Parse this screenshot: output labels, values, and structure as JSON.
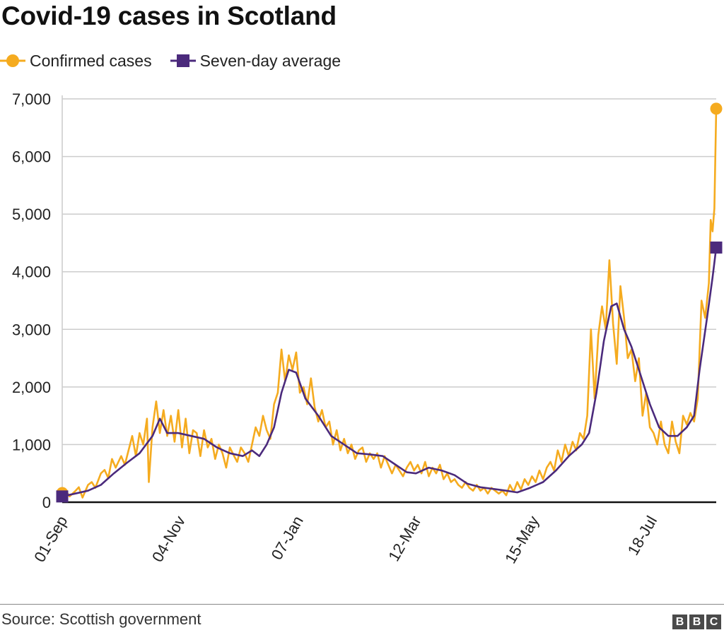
{
  "title": "Covid-19 cases in Scotland",
  "source": "Source: Scottish government",
  "logo": [
    "B",
    "B",
    "C"
  ],
  "colors": {
    "confirmed": "#f5ab1f",
    "average": "#4b2a7c",
    "grid": "#cccccc",
    "axis": "#111111"
  },
  "chart_data": {
    "type": "line",
    "title": "Covid-19 cases in Scotland",
    "xlabel": "",
    "ylabel": "",
    "ylim": [
      0,
      7000
    ],
    "yticks": [
      0,
      1000,
      2000,
      3000,
      4000,
      5000,
      6000,
      7000
    ],
    "ytick_labels": [
      "0",
      "1,000",
      "2,000",
      "3,000",
      "4,000",
      "5,000",
      "6,000",
      "7,000"
    ],
    "xticks": [
      {
        "label": "01-Sep",
        "date": "2020-09-01"
      },
      {
        "label": "04-Nov",
        "date": "2020-11-04"
      },
      {
        "label": "07-Jan",
        "date": "2021-01-07"
      },
      {
        "label": "12-Mar",
        "date": "2021-03-12"
      },
      {
        "label": "15-May",
        "date": "2021-05-15"
      },
      {
        "label": "18-Jul",
        "date": "2021-07-18"
      }
    ],
    "grid": true,
    "legend": "top-left",
    "series": [
      {
        "name": "Confirmed cases",
        "marker": "circle",
        "points": [
          [
            "2020-09-01",
            160
          ],
          [
            "2020-09-03",
            200
          ],
          [
            "2020-09-05",
            100
          ],
          [
            "2020-09-08",
            190
          ],
          [
            "2020-09-10",
            260
          ],
          [
            "2020-09-12",
            80
          ],
          [
            "2020-09-15",
            300
          ],
          [
            "2020-09-17",
            350
          ],
          [
            "2020-09-19",
            250
          ],
          [
            "2020-09-22",
            500
          ],
          [
            "2020-09-24",
            560
          ],
          [
            "2020-09-26",
            420
          ],
          [
            "2020-09-28",
            750
          ],
          [
            "2020-09-30",
            600
          ],
          [
            "2020-10-03",
            800
          ],
          [
            "2020-10-05",
            650
          ],
          [
            "2020-10-07",
            900
          ],
          [
            "2020-10-09",
            1150
          ],
          [
            "2020-10-11",
            800
          ],
          [
            "2020-10-13",
            1200
          ],
          [
            "2020-10-15",
            1000
          ],
          [
            "2020-10-17",
            1450
          ],
          [
            "2020-10-18",
            350
          ],
          [
            "2020-10-20",
            1300
          ],
          [
            "2020-10-22",
            1750
          ],
          [
            "2020-10-24",
            1200
          ],
          [
            "2020-10-26",
            1600
          ],
          [
            "2020-10-28",
            1150
          ],
          [
            "2020-10-30",
            1500
          ],
          [
            "2020-11-01",
            1050
          ],
          [
            "2020-11-03",
            1600
          ],
          [
            "2020-11-05",
            950
          ],
          [
            "2020-11-07",
            1450
          ],
          [
            "2020-11-09",
            850
          ],
          [
            "2020-11-11",
            1250
          ],
          [
            "2020-11-13",
            1200
          ],
          [
            "2020-11-15",
            800
          ],
          [
            "2020-11-17",
            1250
          ],
          [
            "2020-11-19",
            950
          ],
          [
            "2020-11-21",
            1100
          ],
          [
            "2020-11-23",
            750
          ],
          [
            "2020-11-25",
            1000
          ],
          [
            "2020-11-27",
            850
          ],
          [
            "2020-11-29",
            600
          ],
          [
            "2020-12-01",
            950
          ],
          [
            "2020-12-03",
            820
          ],
          [
            "2020-12-05",
            700
          ],
          [
            "2020-12-07",
            950
          ],
          [
            "2020-12-09",
            850
          ],
          [
            "2020-12-11",
            700
          ],
          [
            "2020-12-13",
            1000
          ],
          [
            "2020-12-15",
            1300
          ],
          [
            "2020-12-17",
            1150
          ],
          [
            "2020-12-19",
            1500
          ],
          [
            "2020-12-21",
            1250
          ],
          [
            "2020-12-23",
            1100
          ],
          [
            "2020-12-25",
            1700
          ],
          [
            "2020-12-27",
            1900
          ],
          [
            "2020-12-29",
            2650
          ],
          [
            "2020-12-31",
            2100
          ],
          [
            "2021-01-02",
            2550
          ],
          [
            "2021-01-04",
            2300
          ],
          [
            "2021-01-06",
            2600
          ],
          [
            "2021-01-08",
            1900
          ],
          [
            "2021-01-10",
            2000
          ],
          [
            "2021-01-12",
            1700
          ],
          [
            "2021-01-14",
            2150
          ],
          [
            "2021-01-16",
            1650
          ],
          [
            "2021-01-18",
            1400
          ],
          [
            "2021-01-20",
            1600
          ],
          [
            "2021-01-22",
            1300
          ],
          [
            "2021-01-24",
            1400
          ],
          [
            "2021-01-26",
            1000
          ],
          [
            "2021-01-28",
            1250
          ],
          [
            "2021-01-30",
            900
          ],
          [
            "2021-02-01",
            1100
          ],
          [
            "2021-02-03",
            850
          ],
          [
            "2021-02-05",
            1000
          ],
          [
            "2021-02-07",
            750
          ],
          [
            "2021-02-09",
            900
          ],
          [
            "2021-02-11",
            950
          ],
          [
            "2021-02-13",
            700
          ],
          [
            "2021-02-15",
            850
          ],
          [
            "2021-02-17",
            750
          ],
          [
            "2021-02-19",
            850
          ],
          [
            "2021-02-21",
            600
          ],
          [
            "2021-02-23",
            800
          ],
          [
            "2021-02-25",
            650
          ],
          [
            "2021-02-27",
            500
          ],
          [
            "2021-03-01",
            650
          ],
          [
            "2021-03-03",
            550
          ],
          [
            "2021-03-05",
            450
          ],
          [
            "2021-03-07",
            600
          ],
          [
            "2021-03-09",
            700
          ],
          [
            "2021-03-11",
            550
          ],
          [
            "2021-03-13",
            650
          ],
          [
            "2021-03-15",
            500
          ],
          [
            "2021-03-17",
            700
          ],
          [
            "2021-03-19",
            450
          ],
          [
            "2021-03-21",
            600
          ],
          [
            "2021-03-23",
            500
          ],
          [
            "2021-03-25",
            650
          ],
          [
            "2021-03-27",
            400
          ],
          [
            "2021-03-29",
            500
          ],
          [
            "2021-03-31",
            350
          ],
          [
            "2021-04-02",
            400
          ],
          [
            "2021-04-04",
            300
          ],
          [
            "2021-04-06",
            250
          ],
          [
            "2021-04-08",
            350
          ],
          [
            "2021-04-10",
            250
          ],
          [
            "2021-04-12",
            200
          ],
          [
            "2021-04-14",
            300
          ],
          [
            "2021-04-16",
            200
          ],
          [
            "2021-04-18",
            250
          ],
          [
            "2021-04-20",
            150
          ],
          [
            "2021-04-22",
            250
          ],
          [
            "2021-04-24",
            200
          ],
          [
            "2021-04-26",
            150
          ],
          [
            "2021-04-28",
            200
          ],
          [
            "2021-04-30",
            120
          ],
          [
            "2021-05-02",
            300
          ],
          [
            "2021-05-04",
            180
          ],
          [
            "2021-05-06",
            350
          ],
          [
            "2021-05-08",
            220
          ],
          [
            "2021-05-10",
            400
          ],
          [
            "2021-05-12",
            300
          ],
          [
            "2021-05-14",
            450
          ],
          [
            "2021-05-16",
            350
          ],
          [
            "2021-05-18",
            550
          ],
          [
            "2021-05-20",
            400
          ],
          [
            "2021-05-22",
            600
          ],
          [
            "2021-05-24",
            700
          ],
          [
            "2021-05-26",
            550
          ],
          [
            "2021-05-28",
            900
          ],
          [
            "2021-05-30",
            700
          ],
          [
            "2021-06-01",
            1000
          ],
          [
            "2021-06-03",
            800
          ],
          [
            "2021-06-05",
            1050
          ],
          [
            "2021-06-07",
            900
          ],
          [
            "2021-06-09",
            1200
          ],
          [
            "2021-06-11",
            1100
          ],
          [
            "2021-06-13",
            1500
          ],
          [
            "2021-06-15",
            3000
          ],
          [
            "2021-06-17",
            1800
          ],
          [
            "2021-06-19",
            2900
          ],
          [
            "2021-06-21",
            3400
          ],
          [
            "2021-06-23",
            3000
          ],
          [
            "2021-06-25",
            4200
          ],
          [
            "2021-06-27",
            3100
          ],
          [
            "2021-06-29",
            2400
          ],
          [
            "2021-07-01",
            3750
          ],
          [
            "2021-07-03",
            3200
          ],
          [
            "2021-07-05",
            2500
          ],
          [
            "2021-07-07",
            2650
          ],
          [
            "2021-07-09",
            2100
          ],
          [
            "2021-07-11",
            2500
          ],
          [
            "2021-07-13",
            1500
          ],
          [
            "2021-07-15",
            1900
          ],
          [
            "2021-07-17",
            1300
          ],
          [
            "2021-07-19",
            1200
          ],
          [
            "2021-07-21",
            1000
          ],
          [
            "2021-07-23",
            1400
          ],
          [
            "2021-07-25",
            1000
          ],
          [
            "2021-07-27",
            850
          ],
          [
            "2021-07-29",
            1400
          ],
          [
            "2021-07-31",
            1050
          ],
          [
            "2021-08-02",
            850
          ],
          [
            "2021-08-04",
            1500
          ],
          [
            "2021-08-06",
            1350
          ],
          [
            "2021-08-08",
            1550
          ],
          [
            "2021-08-10",
            1400
          ],
          [
            "2021-08-12",
            1800
          ],
          [
            "2021-08-14",
            3500
          ],
          [
            "2021-08-16",
            3200
          ],
          [
            "2021-08-18",
            3800
          ],
          [
            "2021-08-19",
            4900
          ],
          [
            "2021-08-20",
            4700
          ],
          [
            "2021-08-21",
            5100
          ],
          [
            "2021-08-22",
            6830
          ]
        ]
      },
      {
        "name": "Seven-day average",
        "marker": "square",
        "points": [
          [
            "2020-09-01",
            100
          ],
          [
            "2020-09-08",
            150
          ],
          [
            "2020-09-15",
            200
          ],
          [
            "2020-09-22",
            300
          ],
          [
            "2020-09-29",
            500
          ],
          [
            "2020-10-06",
            680
          ],
          [
            "2020-10-13",
            850
          ],
          [
            "2020-10-20",
            1150
          ],
          [
            "2020-10-24",
            1450
          ],
          [
            "2020-10-28",
            1200
          ],
          [
            "2020-11-03",
            1200
          ],
          [
            "2020-11-10",
            1150
          ],
          [
            "2020-11-17",
            1100
          ],
          [
            "2020-11-24",
            950
          ],
          [
            "2020-12-01",
            850
          ],
          [
            "2020-12-08",
            800
          ],
          [
            "2020-12-13",
            900
          ],
          [
            "2020-12-17",
            800
          ],
          [
            "2020-12-21",
            1000
          ],
          [
            "2020-12-25",
            1300
          ],
          [
            "2020-12-29",
            1900
          ],
          [
            "2021-01-02",
            2300
          ],
          [
            "2021-01-06",
            2250
          ],
          [
            "2021-01-11",
            1800
          ],
          [
            "2021-01-18",
            1500
          ],
          [
            "2021-01-25",
            1150
          ],
          [
            "2021-02-01",
            1000
          ],
          [
            "2021-02-08",
            850
          ],
          [
            "2021-02-15",
            830
          ],
          [
            "2021-02-22",
            800
          ],
          [
            "2021-03-01",
            650
          ],
          [
            "2021-03-07",
            520
          ],
          [
            "2021-03-12",
            500
          ],
          [
            "2021-03-19",
            600
          ],
          [
            "2021-03-26",
            550
          ],
          [
            "2021-04-02",
            470
          ],
          [
            "2021-04-09",
            320
          ],
          [
            "2021-04-16",
            260
          ],
          [
            "2021-04-23",
            230
          ],
          [
            "2021-04-30",
            200
          ],
          [
            "2021-05-06",
            170
          ],
          [
            "2021-05-13",
            250
          ],
          [
            "2021-05-20",
            350
          ],
          [
            "2021-05-27",
            550
          ],
          [
            "2021-06-03",
            800
          ],
          [
            "2021-06-10",
            1000
          ],
          [
            "2021-06-14",
            1200
          ],
          [
            "2021-06-18",
            1900
          ],
          [
            "2021-06-22",
            2800
          ],
          [
            "2021-06-26",
            3400
          ],
          [
            "2021-06-29",
            3450
          ],
          [
            "2021-07-03",
            3000
          ],
          [
            "2021-07-07",
            2700
          ],
          [
            "2021-07-12",
            2200
          ],
          [
            "2021-07-17",
            1700
          ],
          [
            "2021-07-22",
            1300
          ],
          [
            "2021-07-27",
            1150
          ],
          [
            "2021-08-01",
            1150
          ],
          [
            "2021-08-06",
            1300
          ],
          [
            "2021-08-10",
            1500
          ],
          [
            "2021-08-13",
            2300
          ],
          [
            "2021-08-17",
            3200
          ],
          [
            "2021-08-20",
            3900
          ],
          [
            "2021-08-22",
            4420
          ]
        ]
      }
    ]
  }
}
